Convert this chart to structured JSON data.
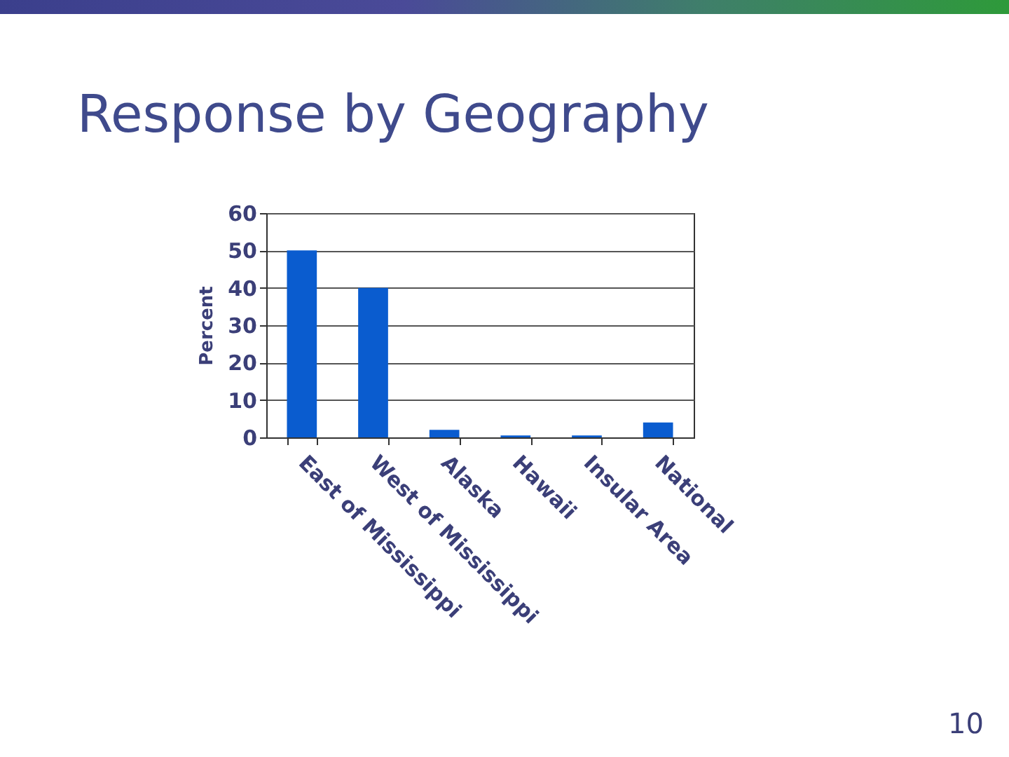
{
  "chart_data": {
    "type": "bar",
    "title": "Response by Geography",
    "ylabel": "Percent",
    "categories": [
      "East of Mississippi",
      "West of Mississippi",
      "Alaska",
      "Hawaii",
      "Insular Area",
      "National"
    ],
    "values": [
      50,
      40,
      2,
      0.5,
      0.5,
      4
    ],
    "color": "#0a5ccf",
    "ylim": [
      0,
      60
    ],
    "yticks": [
      0,
      10,
      20,
      30,
      40,
      50,
      60
    ],
    "grid": "y",
    "annotations": [
      "10"
    ]
  }
}
